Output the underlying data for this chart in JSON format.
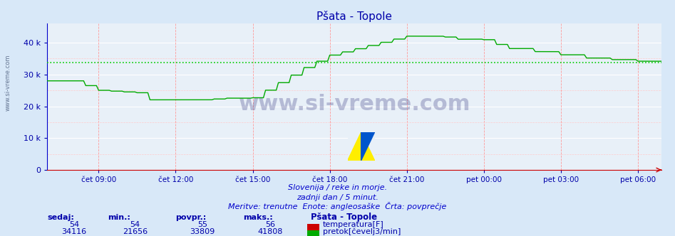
{
  "title": "Pšata - Topole",
  "bg_color": "#d8e8f8",
  "plot_bg_color": "#e8f0f8",
  "title_color": "#0000aa",
  "axis_color": "#0000aa",
  "tick_color": "#0000aa",
  "grid_major_color": "#ffffff",
  "grid_minor_color": "#ffaaaa",
  "flow_line_color": "#00aa00",
  "temp_line_color": "#cc0000",
  "avg_line_color": "#00cc00",
  "ylim": [
    0,
    46000
  ],
  "yticks": [
    0,
    10000,
    20000,
    30000,
    40000
  ],
  "ytick_labels": [
    "0",
    "10 k",
    "20 k",
    "30 k",
    "40 k"
  ],
  "xlabel_times": [
    "čet 09:00",
    "čet 12:00",
    "čet 15:00",
    "čet 18:00",
    "čet 21:00",
    "pet 00:00",
    "pet 03:00",
    "pet 06:00"
  ],
  "subtitle_line1": "Slovenija / reke in morje.",
  "subtitle_line2": "zadnji dan / 5 minut.",
  "subtitle_line3": "Meritve: trenutne  Enote: angleosaške  Črta: povprečje",
  "subtitle_color": "#0000cc",
  "watermark": "www.si-vreme.com",
  "avg_flow": 33809,
  "table_headers": [
    "sedaj:",
    "min.:",
    "povpr.:",
    "maks.:"
  ],
  "table_color": "#0000aa",
  "station_name": "Pšata - Topole",
  "temp_sedaj": 54,
  "temp_min": 54,
  "temp_povpr": 55,
  "temp_maks": 56,
  "flow_sedaj": 34116,
  "flow_min": 21656,
  "flow_povpr": 33809,
  "flow_maks": 41808
}
